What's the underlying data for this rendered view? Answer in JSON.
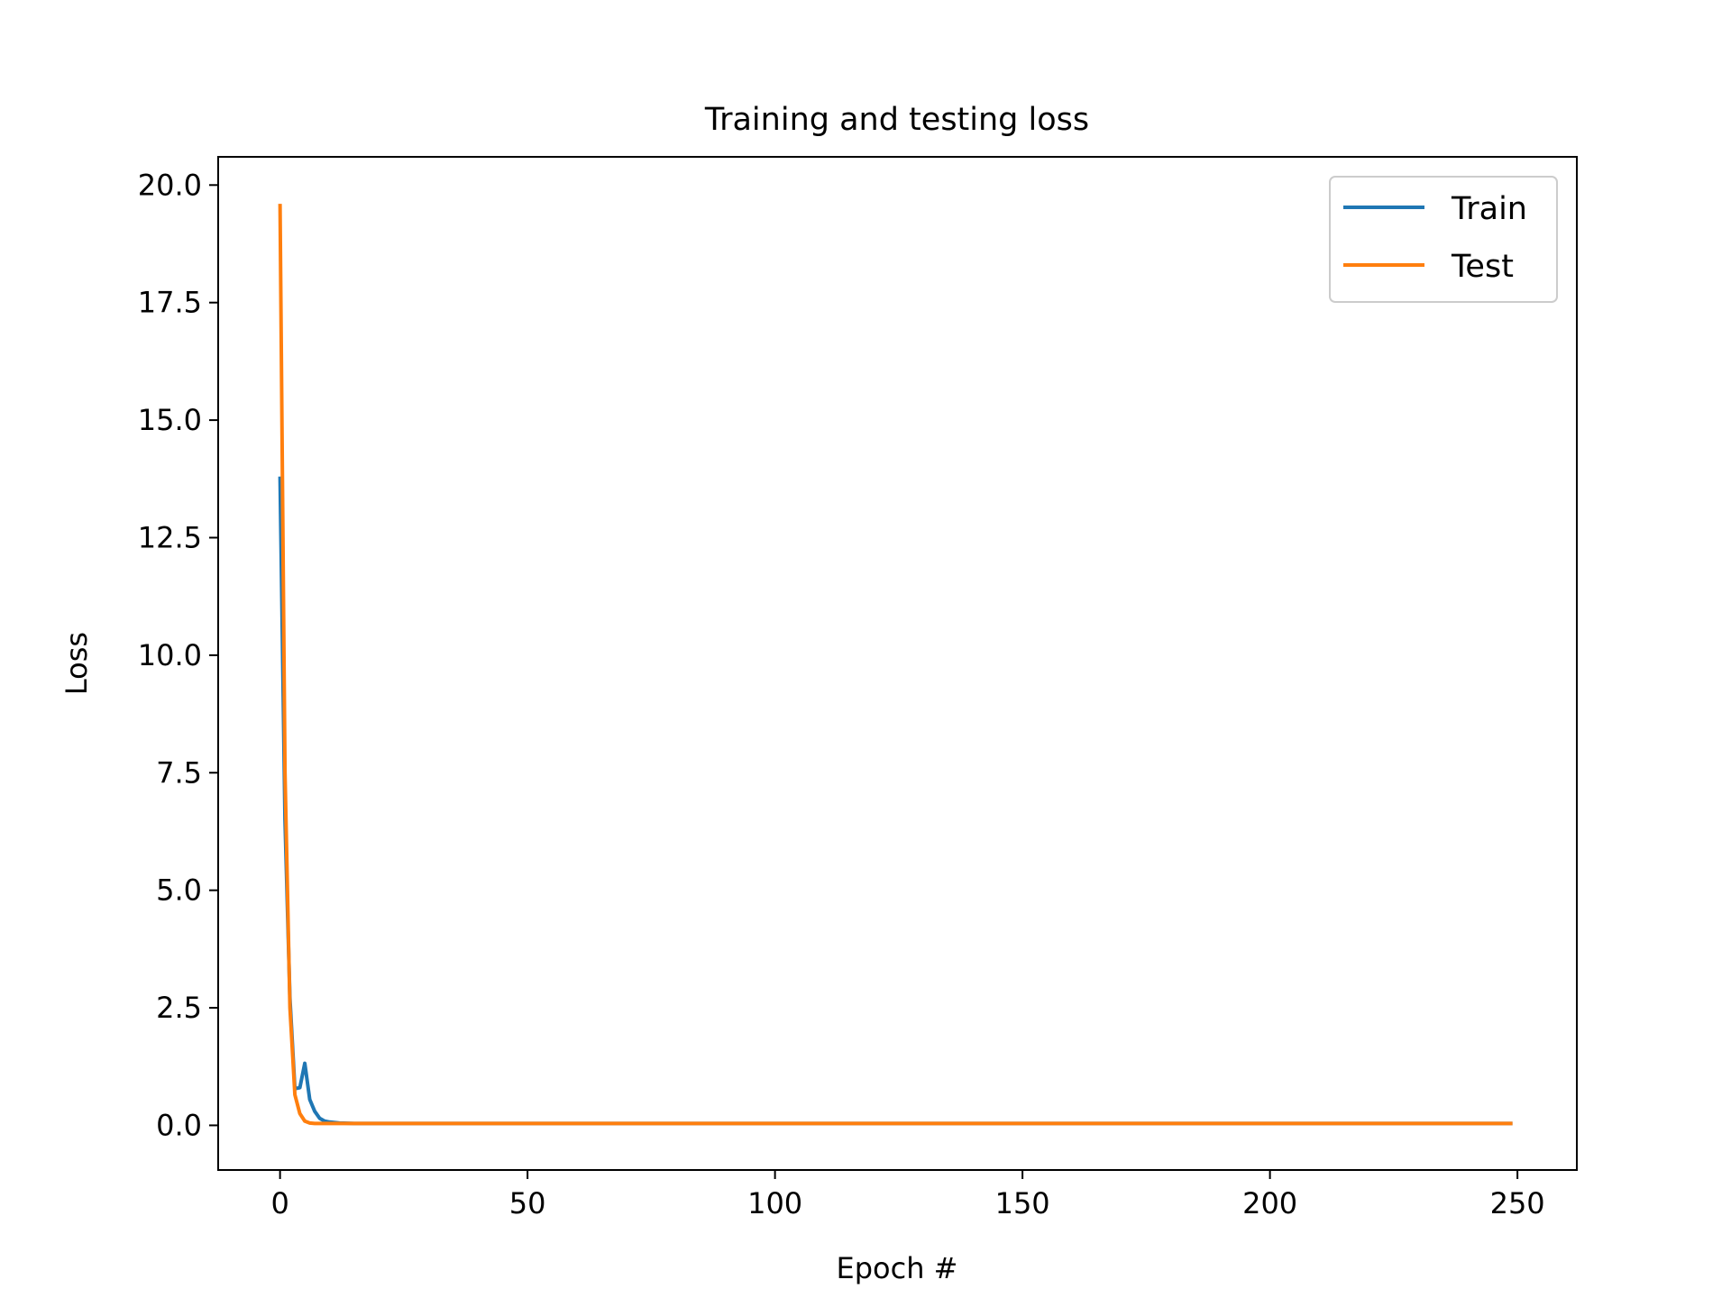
{
  "chart_data": {
    "type": "line",
    "title": "Training and testing loss",
    "xlabel": "Epoch #",
    "ylabel": "Loss",
    "xlim": [
      -12.5,
      262
    ],
    "ylim": [
      -0.95,
      20.6
    ],
    "xticks": [
      0,
      50,
      100,
      150,
      200,
      250
    ],
    "xtick_labels": [
      "0",
      "50",
      "100",
      "150",
      "200",
      "250"
    ],
    "yticks": [
      0,
      2.5,
      5,
      7.5,
      10,
      12.5,
      15,
      17.5,
      20
    ],
    "ytick_labels": [
      "0.0",
      "2.5",
      "5.0",
      "7.5",
      "10.0",
      "12.5",
      "15.0",
      "17.5",
      "20.0"
    ],
    "grid": false,
    "legend_position": "top-right",
    "series": [
      {
        "name": "Train",
        "color": "#1f77b4",
        "x": [
          0,
          1,
          2,
          3,
          4,
          5,
          6,
          7,
          8,
          9,
          10,
          12,
          15,
          20,
          30,
          50,
          100,
          150,
          200,
          249
        ],
        "y": [
          13.8,
          6.5,
          2.7,
          0.78,
          0.8,
          1.32,
          0.55,
          0.3,
          0.15,
          0.09,
          0.07,
          0.05,
          0.04,
          0.04,
          0.04,
          0.04,
          0.04,
          0.04,
          0.04,
          0.04
        ]
      },
      {
        "name": "Test",
        "color": "#ff7f0e",
        "x": [
          0,
          1,
          2,
          3,
          4,
          5,
          6,
          7,
          8,
          10,
          12,
          15,
          20,
          30,
          50,
          100,
          150,
          200,
          249
        ],
        "y": [
          19.6,
          7.5,
          2.5,
          0.65,
          0.25,
          0.09,
          0.05,
          0.04,
          0.04,
          0.04,
          0.04,
          0.04,
          0.04,
          0.04,
          0.04,
          0.04,
          0.04,
          0.04,
          0.04
        ]
      }
    ]
  }
}
